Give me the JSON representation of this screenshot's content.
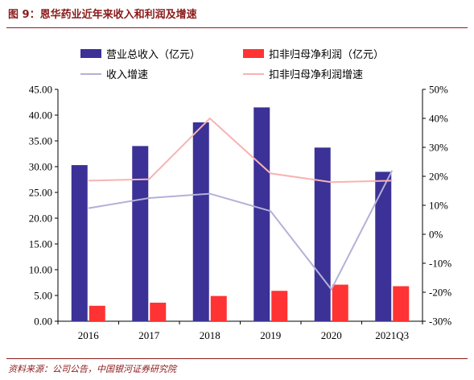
{
  "figure": {
    "title": "图 9：恩华药业近年来收入和利润及增速",
    "source": "资料来源：公司公告，中国银河证券研究院"
  },
  "colors": {
    "revenue_bar": "#3b3196",
    "profit_bar": "#ff3333",
    "revenue_growth_line": "#b3b1d6",
    "profit_growth_line": "#f7b3b3",
    "title_color": "#8b1a1a"
  },
  "chart_data": {
    "type": "bar",
    "categories": [
      "2016",
      "2017",
      "2018",
      "2019",
      "2020",
      "2021Q3"
    ],
    "series": [
      {
        "name": "营业总收入（亿元）",
        "type": "bar",
        "axis": "left",
        "values": [
          30.3,
          34.0,
          38.6,
          41.5,
          33.7,
          29.0
        ]
      },
      {
        "name": "扣非归母净利润（亿元）",
        "type": "bar",
        "axis": "left",
        "values": [
          3.0,
          3.6,
          4.9,
          5.9,
          7.1,
          6.8
        ]
      },
      {
        "name": "收入增速",
        "type": "line",
        "axis": "right",
        "values": [
          9.0,
          12.5,
          14.0,
          8.0,
          -19.0,
          22.0
        ]
      },
      {
        "name": "扣非归母净利润增速",
        "type": "line",
        "axis": "right",
        "values": [
          18.5,
          19.0,
          40.0,
          21.0,
          18.0,
          18.5
        ]
      }
    ],
    "ylim_left": [
      0,
      45
    ],
    "yticks_left": [
      "0.00",
      "5.00",
      "10.00",
      "15.00",
      "20.00",
      "25.00",
      "30.00",
      "35.00",
      "40.00",
      "45.00"
    ],
    "ylim_right": [
      -30,
      50
    ],
    "yticks_right": [
      "-30%",
      "-20%",
      "-10%",
      "0%",
      "10%",
      "20%",
      "30%",
      "40%",
      "50%"
    ],
    "legend_position": "top",
    "grid": false
  }
}
